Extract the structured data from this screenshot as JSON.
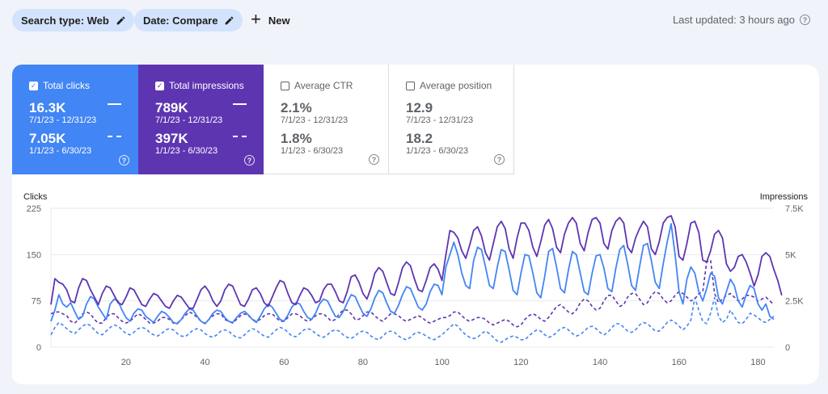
{
  "filters": {
    "search_type": "Search type: Web",
    "date": "Date: Compare",
    "new_label": "New"
  },
  "last_updated": "Last updated: 3 hours ago",
  "metrics": [
    {
      "label": "Total clicks",
      "checked": true,
      "current": "16.3K",
      "current_range": "7/1/23 - 12/31/23",
      "previous": "7.05K",
      "previous_range": "1/1/23 - 6/30/23",
      "color": "#4285f4"
    },
    {
      "label": "Total impressions",
      "checked": true,
      "current": "789K",
      "current_range": "7/1/23 - 12/31/23",
      "previous": "397K",
      "previous_range": "1/1/23 - 6/30/23",
      "color": "#5e35b1"
    },
    {
      "label": "Average CTR",
      "checked": false,
      "current": "2.1%",
      "current_range": "7/1/23 - 12/31/23",
      "previous": "1.8%",
      "previous_range": "1/1/23 - 6/30/23"
    },
    {
      "label": "Average position",
      "checked": false,
      "current": "12.9",
      "current_range": "7/1/23 - 12/31/23",
      "previous": "18.2",
      "previous_range": "1/1/23 - 6/30/23"
    }
  ],
  "colors": {
    "clicks": "#4285f4",
    "impressions": "#5e35b1",
    "clicks_prev": "#4285f4",
    "impressions_prev": "#5e35b1"
  },
  "chart_data": {
    "type": "line",
    "ylabel_left": "Clicks",
    "ylabel_right": "Impressions",
    "y_left_ticks": [
      "225",
      "150",
      "75",
      "0"
    ],
    "y_left_range": [
      0,
      225
    ],
    "y_right_ticks": [
      "7.5K",
      "5K",
      "2.5K",
      "0"
    ],
    "y_right_range": [
      0,
      7500
    ],
    "x_ticks": [
      "20",
      "40",
      "60",
      "80",
      "100",
      "120",
      "140",
      "160",
      "180"
    ],
    "x_range": [
      1,
      184
    ],
    "grid": true,
    "series": [
      {
        "name": "Clicks (7/1/23 - 12/31/23)",
        "axis": "left",
        "style": "solid",
        "values": [
          42,
          60,
          85,
          70,
          65,
          72,
          58,
          45,
          50,
          70,
          82,
          78,
          65,
          55,
          45,
          70,
          78,
          75,
          60,
          48,
          42,
          55,
          62,
          60,
          50,
          45,
          40,
          50,
          58,
          55,
          48,
          40,
          38,
          45,
          55,
          62,
          60,
          50,
          42,
          38,
          45,
          55,
          60,
          58,
          48,
          42,
          40,
          48,
          55,
          58,
          52,
          45,
          40,
          50,
          62,
          70,
          65,
          55,
          45,
          42,
          52,
          65,
          72,
          70,
          58,
          48,
          45,
          55,
          70,
          78,
          75,
          62,
          50,
          48,
          58,
          72,
          85,
          82,
          68,
          55,
          50,
          62,
          80,
          92,
          88,
          72,
          58,
          55,
          68,
          85,
          98,
          95,
          80,
          65,
          60,
          70,
          90,
          102,
          100,
          85,
          130,
          150,
          170,
          150,
          120,
          100,
          95,
          140,
          162,
          158,
          130,
          100,
          95,
          130,
          158,
          155,
          125,
          92,
          85,
          120,
          150,
          148,
          120,
          88,
          80,
          115,
          155,
          160,
          130,
          95,
          88,
          125,
          155,
          150,
          120,
          90,
          85,
          120,
          148,
          150,
          128,
          95,
          90,
          128,
          158,
          165,
          135,
          100,
          92,
          130,
          165,
          168,
          140,
          105,
          95,
          135,
          170,
          200,
          150,
          90,
          70,
          110,
          130,
          120,
          90,
          75,
          95,
          120,
          115,
          80,
          70,
          90,
          110,
          100,
          75,
          65,
          85,
          100,
          95,
          70,
          60,
          70,
          50,
          45
        ]
      },
      {
        "name": "Impressions (7/1/23 - 12/31/23)",
        "axis": "right",
        "style": "solid",
        "values": [
          2300,
          3700,
          3500,
          3400,
          3100,
          2500,
          2400,
          3200,
          3700,
          3600,
          3100,
          2700,
          2300,
          2900,
          3300,
          3200,
          2800,
          2400,
          2300,
          2700,
          3200,
          3100,
          2700,
          2300,
          2200,
          2600,
          2900,
          2800,
          2500,
          2200,
          2100,
          2500,
          2800,
          2700,
          2400,
          2100,
          2100,
          2600,
          3100,
          3300,
          3000,
          2500,
          2200,
          2500,
          3100,
          3400,
          3300,
          2800,
          2300,
          2200,
          2600,
          3100,
          3200,
          2900,
          2400,
          2200,
          2700,
          3200,
          3600,
          3500,
          2900,
          2400,
          2300,
          2800,
          3200,
          3100,
          2800,
          2400,
          2500,
          3100,
          3400,
          3400,
          3000,
          2500,
          2400,
          3000,
          3800,
          3900,
          3500,
          2900,
          2600,
          3200,
          4000,
          4300,
          4100,
          3500,
          2900,
          2800,
          3500,
          4300,
          4600,
          4400,
          3700,
          3100,
          3000,
          3600,
          4300,
          4500,
          4200,
          3600,
          5000,
          6300,
          6200,
          5900,
          5200,
          4800,
          5500,
          6300,
          6500,
          6000,
          5100,
          4700,
          5600,
          6500,
          6800,
          6400,
          5300,
          4800,
          5900,
          6700,
          6700,
          6300,
          5400,
          4900,
          5700,
          6600,
          6900,
          6400,
          5400,
          5100,
          6100,
          6700,
          7000,
          6700,
          5600,
          5200,
          6200,
          6900,
          7000,
          6700,
          5600,
          5300,
          6300,
          6800,
          7000,
          6700,
          5400,
          5100,
          5900,
          6400,
          6800,
          6500,
          5300,
          5000,
          5700,
          6700,
          7000,
          7100,
          6500,
          4900,
          4700,
          5600,
          6700,
          6800,
          6200,
          4700,
          4600,
          5200,
          6100,
          6300,
          5900,
          4500,
          4100,
          4300,
          4900,
          5000,
          4600,
          4000,
          3300,
          3900,
          4900,
          5100,
          4900,
          4200,
          3600,
          2800
        ]
      },
      {
        "name": "Clicks (1/1/23 - 6/30/23)",
        "axis": "left",
        "style": "dashed",
        "values": [
          20,
          32,
          40,
          36,
          30,
          25,
          22,
          28,
          34,
          38,
          35,
          28,
          22,
          20,
          26,
          32,
          36,
          34,
          28,
          22,
          20,
          24,
          30,
          32,
          30,
          24,
          20,
          18,
          22,
          28,
          30,
          28,
          22,
          18,
          17,
          22,
          28,
          30,
          28,
          22,
          18,
          16,
          20,
          26,
          28,
          26,
          20,
          16,
          15,
          20,
          26,
          30,
          28,
          22,
          18,
          16,
          22,
          28,
          32,
          30,
          24,
          18,
          17,
          22,
          28,
          30,
          28,
          22,
          18,
          16,
          20,
          26,
          28,
          26,
          20,
          16,
          14,
          18,
          24,
          26,
          24,
          18,
          14,
          12,
          18,
          24,
          26,
          24,
          18,
          14,
          12,
          16,
          22,
          24,
          22,
          18,
          14,
          12,
          16,
          20,
          26,
          32,
          38,
          34,
          26,
          20,
          16,
          14,
          16,
          22,
          26,
          22,
          16,
          10,
          8,
          12,
          16,
          18,
          16,
          12,
          12,
          18,
          24,
          28,
          26,
          20,
          16,
          18,
          24,
          30,
          32,
          28,
          22,
          18,
          20,
          26,
          32,
          34,
          30,
          24,
          20,
          24,
          32,
          38,
          38,
          32,
          26,
          24,
          28,
          36,
          40,
          38,
          32,
          26,
          26,
          32,
          40,
          44,
          40,
          34,
          28,
          34,
          44,
          80,
          60,
          42,
          38,
          55,
          80,
          50,
          40,
          45,
          60,
          50,
          40,
          38,
          45,
          55,
          52,
          48,
          42,
          40,
          45,
          50
        ]
      },
      {
        "name": "Impressions (1/1/23 - 6/30/23)",
        "axis": "right",
        "style": "dashed",
        "values": [
          1800,
          1900,
          1900,
          1800,
          1700,
          1400,
          1300,
          1500,
          1800,
          1900,
          1800,
          1500,
          1300,
          1300,
          1600,
          1800,
          1800,
          1600,
          1400,
          1300,
          1400,
          1600,
          1800,
          1700,
          1500,
          1300,
          1300,
          1400,
          1600,
          1600,
          1500,
          1300,
          1300,
          1500,
          1700,
          1900,
          1800,
          1600,
          1400,
          1300,
          1500,
          1700,
          1800,
          1800,
          1500,
          1400,
          1300,
          1500,
          1700,
          1800,
          1700,
          1500,
          1400,
          1500,
          1700,
          1800,
          1800,
          1600,
          1400,
          1400,
          1600,
          1800,
          1800,
          1700,
          1500,
          1400,
          1500,
          1700,
          1800,
          1800,
          1600,
          1400,
          1500,
          1800,
          2000,
          2000,
          1800,
          1500,
          1500,
          1700,
          1900,
          1900,
          1700,
          1500,
          1400,
          1600,
          1800,
          1800,
          1700,
          1500,
          1400,
          1500,
          1600,
          1700,
          1600,
          1400,
          1300,
          1400,
          1500,
          1600,
          1600,
          1700,
          1900,
          1900,
          1700,
          1500,
          1400,
          1500,
          1600,
          1600,
          1500,
          1300,
          1200,
          1300,
          1400,
          1500,
          1400,
          1200,
          1100,
          1200,
          1500,
          1700,
          1800,
          1700,
          1500,
          1400,
          1600,
          1900,
          2200,
          2300,
          2100,
          1900,
          1800,
          2000,
          2400,
          2600,
          2500,
          2200,
          2000,
          2100,
          2500,
          2800,
          2800,
          2500,
          2200,
          2300,
          2700,
          2900,
          2900,
          2600,
          2300,
          2400,
          2800,
          3000,
          2900,
          2600,
          2400,
          2500,
          2800,
          3000,
          2900,
          2700,
          2500,
          2600,
          2900,
          3000,
          4600,
          4700,
          2900,
          2400,
          2600,
          2800,
          2900,
          2700,
          2500,
          2600,
          2800,
          2800,
          2700,
          2500,
          2600,
          2700,
          2500,
          2300
        ]
      }
    ]
  }
}
